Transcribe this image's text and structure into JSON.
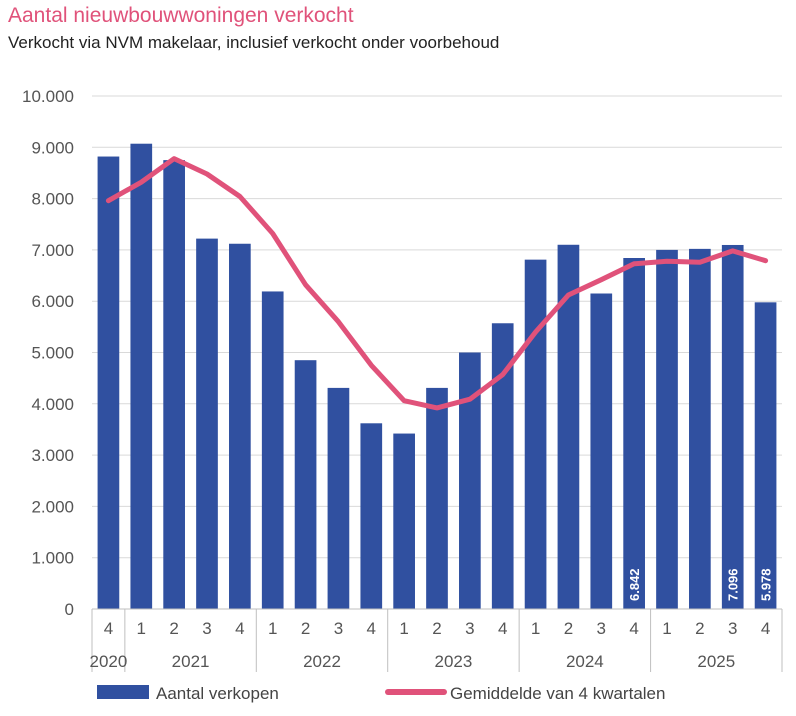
{
  "chart_data": {
    "type": "bar",
    "title": "Aantal nieuwbouwwoningen verkocht",
    "subtitle": "Verkocht via NVM makelaar, inclusief verkocht onder voorbehoud",
    "xlabel": "",
    "ylabel": "",
    "ylim": [
      0,
      10000
    ],
    "yticks": [
      0,
      1000,
      2000,
      3000,
      4000,
      5000,
      6000,
      7000,
      8000,
      9000,
      10000
    ],
    "ytick_labels": [
      "0",
      "1.000",
      "2.000",
      "3.000",
      "4.000",
      "5.000",
      "6.000",
      "7.000",
      "8.000",
      "9.000",
      "10.000"
    ],
    "grid": true,
    "categories": [
      "4",
      "1",
      "2",
      "3",
      "4",
      "1",
      "2",
      "3",
      "4",
      "1",
      "2",
      "3",
      "4",
      "1",
      "2",
      "3",
      "4",
      "1",
      "2",
      "3",
      "4"
    ],
    "years": [
      {
        "label": "2020",
        "count": 1
      },
      {
        "label": "2021",
        "count": 4
      },
      {
        "label": "2022",
        "count": 4
      },
      {
        "label": "2023",
        "count": 4
      },
      {
        "label": "2024",
        "count": 4
      },
      {
        "label": "2025",
        "count": 4
      }
    ],
    "series": [
      {
        "name": "Aantal verkopen",
        "type": "bar",
        "color": "#3050a0",
        "values": [
          8820,
          9070,
          8750,
          7220,
          7120,
          6190,
          4850,
          4310,
          3620,
          3420,
          4310,
          5000,
          5570,
          6810,
          7100,
          6150,
          6842,
          7000,
          7020,
          7096,
          5978
        ]
      },
      {
        "name": "Gemiddelde van 4 kwartalen",
        "type": "line",
        "color": "#e0527a",
        "values": [
          7960,
          8320,
          8780,
          8480,
          8040,
          7320,
          6320,
          5600,
          4750,
          4060,
          3920,
          4090,
          4570,
          5400,
          6120,
          6420,
          6730,
          6780,
          6760,
          6980,
          6790
        ]
      }
    ],
    "data_labels": [
      {
        "index": 16,
        "text": "6.842"
      },
      {
        "index": 19,
        "text": "7.096"
      },
      {
        "index": 20,
        "text": "5.978"
      }
    ],
    "legend": {
      "placement": "bottom",
      "entries": [
        "Aantal verkopen",
        "Gemiddelde van 4 kwartalen"
      ]
    }
  }
}
